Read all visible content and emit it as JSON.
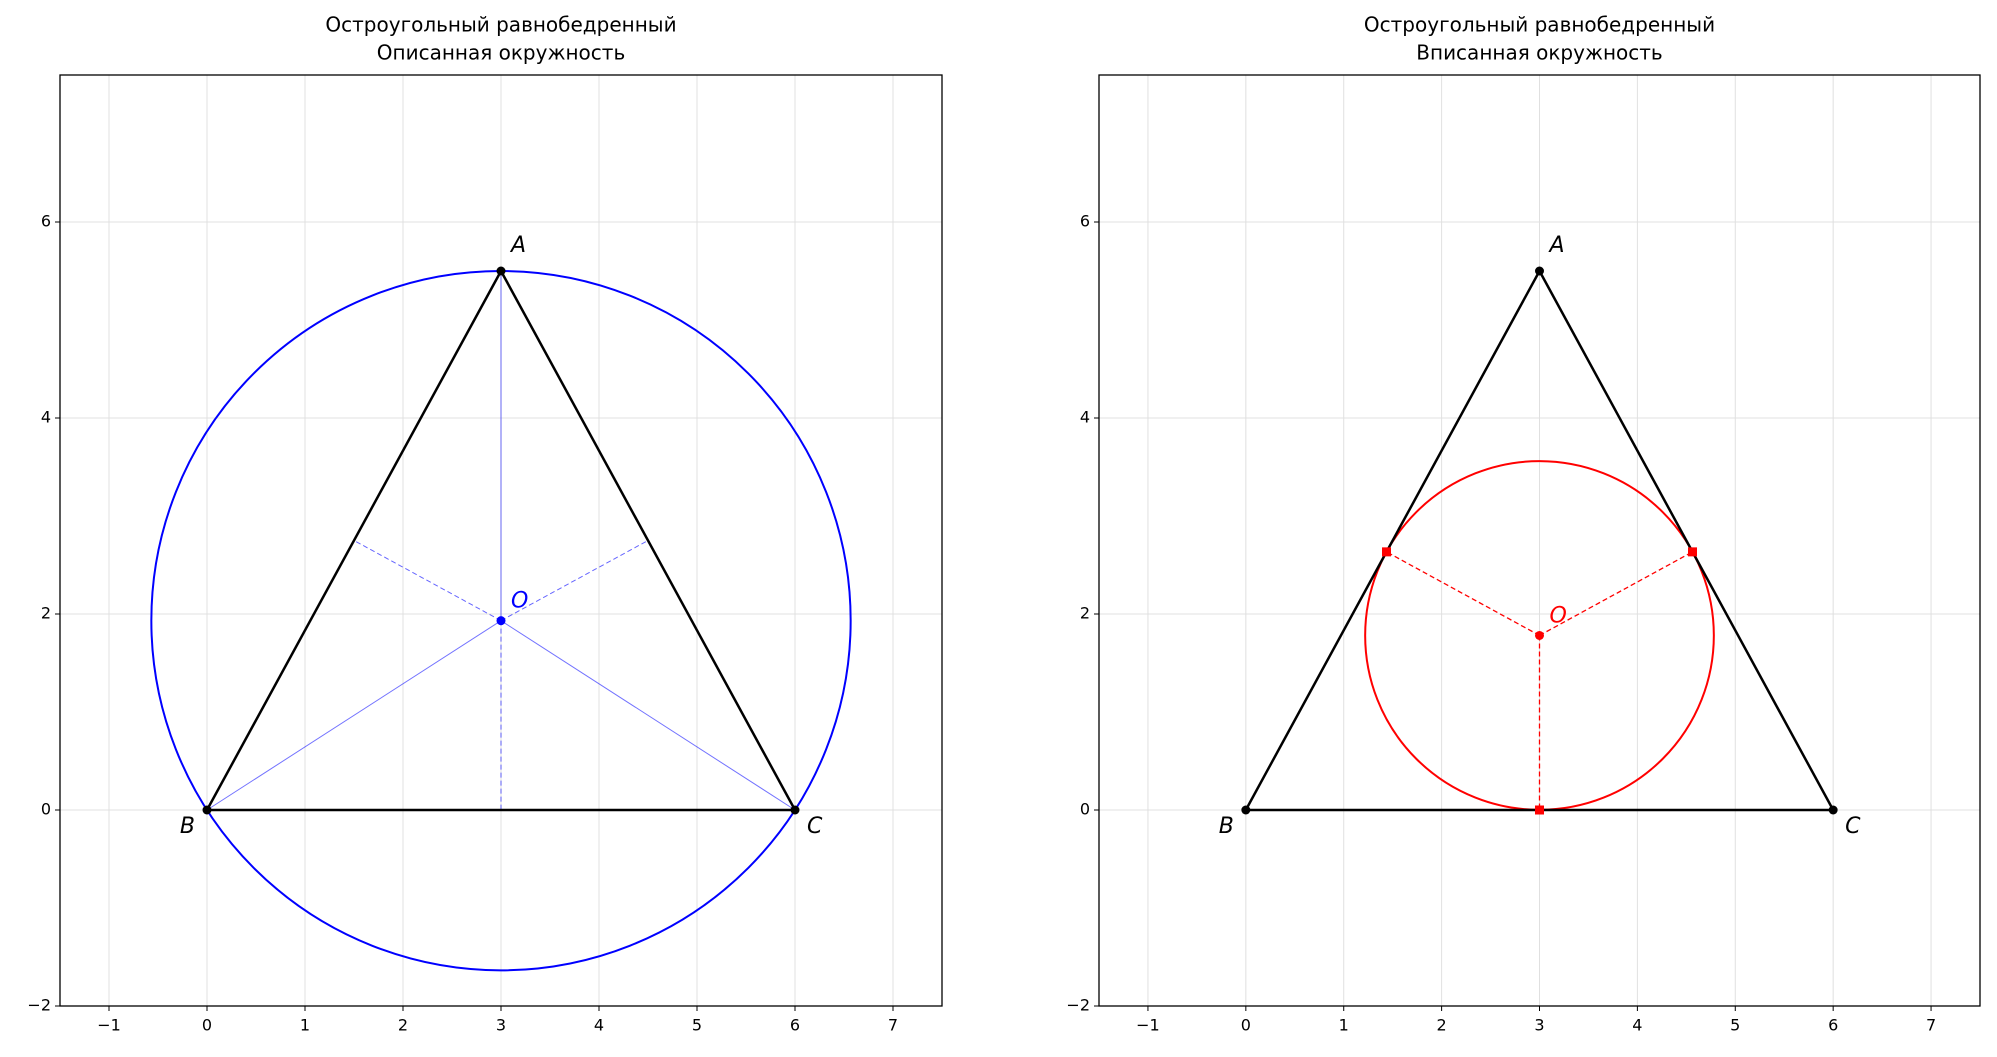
{
  "chart_data": [
    {
      "type": "geometry",
      "title": "Остроугольный равнобедренный",
      "subtitle": "Описанная окружность",
      "xlim": [
        -1.5,
        7.5
      ],
      "ylim": [
        -2,
        7.5
      ],
      "xticks": [
        {
          "value": -1,
          "label": "−1"
        },
        0,
        1,
        2,
        3,
        4,
        5,
        6,
        7
      ],
      "yticks": [
        {
          "value": -2,
          "label": "−2"
        },
        0,
        2,
        4,
        6
      ],
      "grid": true,
      "color": "blue",
      "triangle_color": "black",
      "points": [
        {
          "label": "A",
          "x": 3,
          "y": 5.5
        },
        {
          "label": "B",
          "x": 0,
          "y": 0
        },
        {
          "label": "C",
          "x": 6,
          "y": 0
        }
      ],
      "center": {
        "label": "O",
        "x": 3,
        "y": 1.932
      },
      "radius": 3.568,
      "midpoints": [
        {
          "x": 1.5,
          "y": 2.75
        },
        {
          "x": 4.5,
          "y": 2.75
        },
        {
          "x": 3,
          "y": 0
        }
      ]
    },
    {
      "type": "geometry",
      "title": "Остроугольный равнобедренный",
      "subtitle": "Вписанная окружность",
      "xlim": [
        -1.5,
        7.5
      ],
      "ylim": [
        -2,
        7.5
      ],
      "xticks": [
        {
          "value": -1,
          "label": "−1"
        },
        0,
        1,
        2,
        3,
        4,
        5,
        6,
        7
      ],
      "yticks": [
        {
          "value": -2,
          "label": "−2"
        },
        0,
        2,
        4,
        6
      ],
      "grid": true,
      "color": "red",
      "triangle_color": "black",
      "points": [
        {
          "label": "A",
          "x": 3,
          "y": 5.5
        },
        {
          "label": "B",
          "x": 0,
          "y": 0
        },
        {
          "label": "C",
          "x": 6,
          "y": 0
        }
      ],
      "center": {
        "label": "O",
        "x": 3,
        "y": 1.781
      },
      "radius": 1.781,
      "tangent_points": [
        {
          "x": 1.437,
          "y": 2.634
        },
        {
          "x": 4.563,
          "y": 2.634
        },
        {
          "x": 3,
          "y": 0
        }
      ]
    }
  ]
}
